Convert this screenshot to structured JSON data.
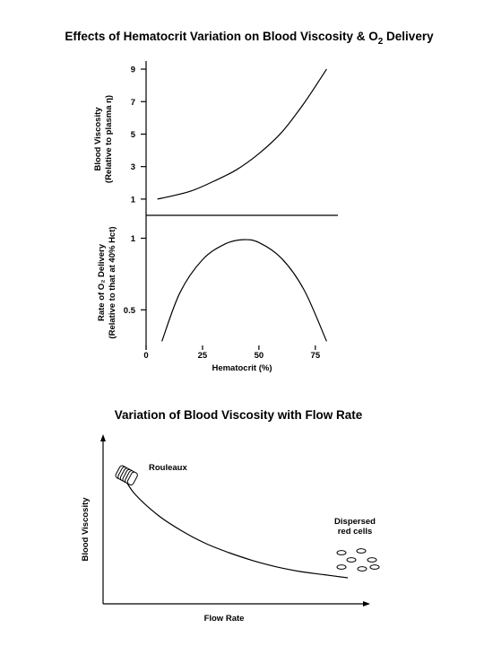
{
  "chart_data": [
    {
      "type": "line",
      "title": "Effects of Hematocrit Variation on Blood Viscosity & O",
      "title_sub": "2",
      "title_end": " Delivery",
      "ylabel_line1": "Blood Viscosity",
      "ylabel_line2": "(Relative to plasma η)",
      "yticks": [
        "1",
        "3",
        "5",
        "7",
        "9"
      ],
      "ylim": [
        0,
        9.5
      ],
      "xlim": [
        0,
        85
      ],
      "series": [
        {
          "x": [
            5,
            10,
            20,
            30,
            40,
            50,
            60,
            70,
            80
          ],
          "y": [
            1.0,
            1.15,
            1.5,
            2.1,
            2.8,
            3.8,
            5.1,
            6.9,
            9.0
          ]
        }
      ]
    },
    {
      "type": "line",
      "ylabel_line1": "Rate of O₂ Delivery",
      "ylabel_line2": "(Relative to that at 40% Hct)",
      "yticks": [
        "0.5",
        "1"
      ],
      "xlabel": "Hematocrit (%)",
      "xticks": [
        "0",
        "25",
        "50",
        "75"
      ],
      "xlim": [
        0,
        85
      ],
      "ylim": [
        0.22,
        1.16
      ],
      "series": [
        {
          "x": [
            7,
            15,
            25,
            35,
            43,
            50,
            60,
            70,
            80
          ],
          "y": [
            0.28,
            0.62,
            0.85,
            0.96,
            0.99,
            0.97,
            0.86,
            0.64,
            0.28
          ]
        }
      ]
    },
    {
      "type": "line",
      "title": "Variation of Blood Viscosity with Flow Rate",
      "xlabel": "Flow Rate",
      "ylabel": "Blood Viscosity",
      "annotations": {
        "rouleaux": "Rouleaux",
        "dispersed_line1": "Dispersed",
        "dispersed_line2": "red cells"
      },
      "series": [
        {
          "x": [
            0.05,
            0.1,
            0.2,
            0.3,
            0.4,
            0.5,
            0.6,
            0.7,
            0.8,
            0.9,
            1.0
          ],
          "y": [
            0.78,
            0.66,
            0.52,
            0.42,
            0.34,
            0.28,
            0.23,
            0.19,
            0.16,
            0.14,
            0.12
          ]
        }
      ]
    }
  ]
}
